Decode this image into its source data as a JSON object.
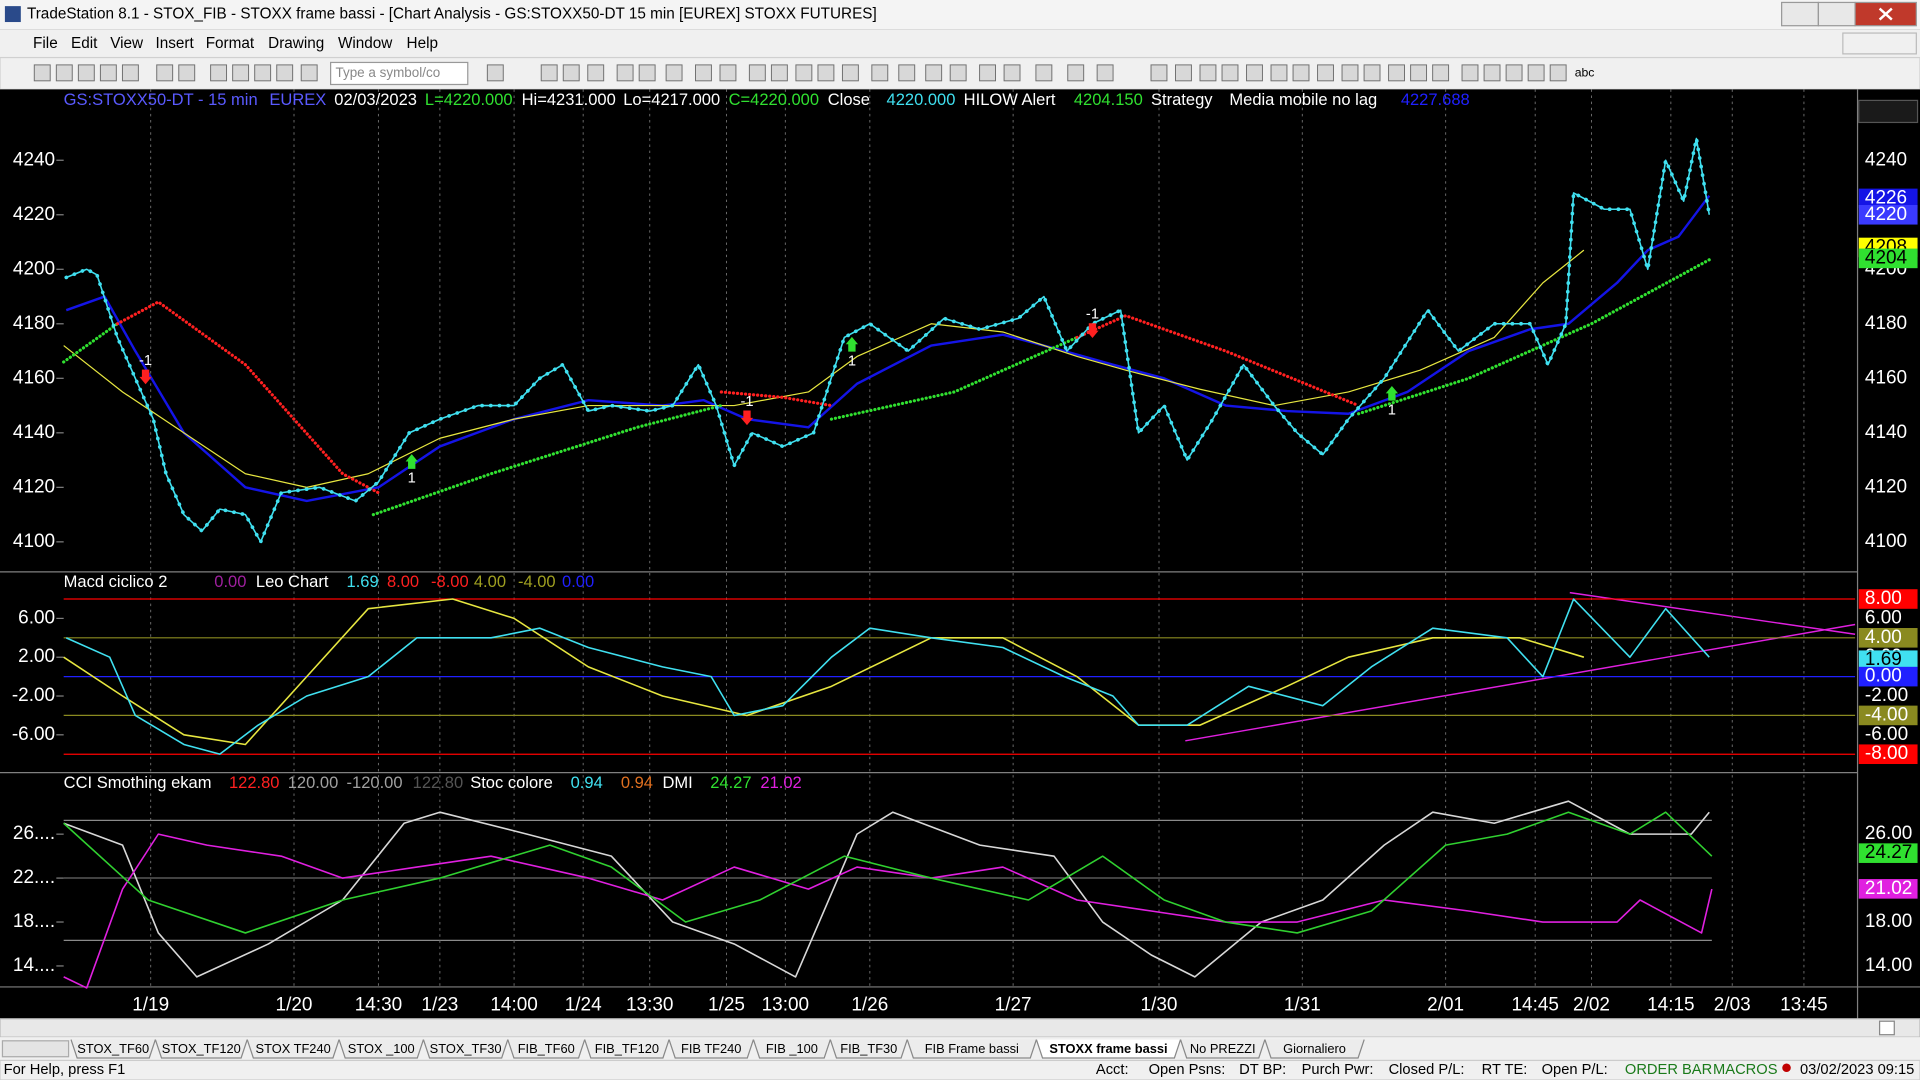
{
  "window": {
    "title": "TradeStation 8.1 - STOX_FIB - STOXX frame bassi - [Chart Analysis - GS:STOXX50-DT  15 min  [EUREX] STOXX FUTURES]"
  },
  "menu": [
    "File",
    "Edit",
    "View",
    "Insert",
    "Format",
    "Drawing",
    "Window",
    "Help"
  ],
  "toolbar": {
    "symbol_placeholder": "Type a symbol/co",
    "text_tool": "abc"
  },
  "chart_data": [
    {
      "type": "line",
      "header": [
        "GS:STOXX50-DT - 15 min",
        "EUREX",
        "02/03/2023",
        "L=4220.000",
        "Hi=4231.000",
        "Lo=4217.000",
        "C=4220.000",
        "Close",
        "4220.000",
        "HILOW Alert",
        "4204.150",
        "Strategy",
        "Media mobile no lag",
        "4227.688"
      ],
      "xlim": [
        0,
        700
      ],
      "xticks": [
        {
          "value": 34,
          "label": "1/19"
        },
        {
          "value": 90,
          "label": "1/20"
        },
        {
          "value": 123,
          "label": "14:30"
        },
        {
          "value": 147,
          "label": "1/23"
        },
        {
          "value": 176,
          "label": "14:00"
        },
        {
          "value": 203,
          "label": "1/24"
        },
        {
          "value": 229,
          "label": "13:30"
        },
        {
          "value": 259,
          "label": "1/25"
        },
        {
          "value": 282,
          "label": "13:00"
        },
        {
          "value": 315,
          "label": "1/26"
        },
        {
          "value": 371,
          "label": "1/27"
        },
        {
          "value": 428,
          "label": "1/30"
        },
        {
          "value": 484,
          "label": "1/31"
        },
        {
          "value": 540,
          "label": "2/01"
        },
        {
          "value": 575,
          "label": "14:45"
        },
        {
          "value": 597,
          "label": "2/02"
        },
        {
          "value": 628,
          "label": "14:15"
        },
        {
          "value": 652,
          "label": "2/03"
        },
        {
          "value": 680,
          "label": "13:45"
        }
      ],
      "ylim": [
        4089,
        4266
      ],
      "yticks": [
        4100,
        4120,
        4140,
        4160,
        4180,
        4200,
        4220,
        4240
      ],
      "series": [
        {
          "color": "#1414e6",
          "style": "line",
          "x": [
            1,
            16,
            28,
            47,
            71,
            95,
            123,
            147,
            176,
            205,
            234,
            250,
            267,
            291,
            310,
            339,
            367,
            391,
            410,
            430,
            454,
            478,
            502,
            525,
            549,
            573,
            588,
            607,
            619,
            631,
            643
          ],
          "values": [
            4185,
            4190,
            4170,
            4140,
            4120,
            4115,
            4120,
            4135,
            4145,
            4152,
            4150,
            4152,
            4145,
            4142,
            4158,
            4172,
            4176,
            4170,
            4165,
            4160,
            4150,
            4148,
            4147,
            4155,
            4170,
            4178,
            4180,
            4195,
            4207,
            4212,
            4227
          ]
        },
        {
          "color": "#e6e640",
          "style": "thin",
          "x": [
            0,
            23,
            47,
            71,
            95,
            119,
            147,
            176,
            205,
            234,
            262,
            291,
            310,
            339,
            367,
            396,
            415,
            444,
            473,
            502,
            530,
            559,
            578,
            594
          ],
          "values": [
            4172,
            4155,
            4140,
            4125,
            4120,
            4125,
            4138,
            4145,
            4150,
            4150,
            4150,
            4155,
            4168,
            4180,
            4177,
            4168,
            4163,
            4156,
            4150,
            4155,
            4163,
            4175,
            4195,
            4207
          ]
        },
        {
          "color": "#30e030",
          "style": "dots",
          "x": [
            0,
            21,
            21,
            121,
            167,
            224,
            257,
            257,
            300,
            348,
            396,
            396,
            506,
            549,
            597,
            644
          ],
          "values": [
            4166,
            4180,
            null,
            4110,
            4125,
            4142,
            4150,
            null,
            4145,
            4155,
            4175,
            null,
            4147,
            4160,
            4180,
            4204
          ]
        },
        {
          "color": "#ff2020",
          "style": "dots",
          "x": [
            21,
            37,
            71,
            109,
            123,
            123,
            257,
            281,
            300,
            300,
            396,
            415,
            454,
            506
          ],
          "values": [
            4180,
            4188,
            4165,
            4125,
            4118,
            null,
            4155,
            4153,
            4150,
            null,
            4175,
            4183,
            4170,
            4150
          ]
        },
        {
          "color": "#40e0f0",
          "style": "price",
          "x": [
            1,
            9,
            13,
            21,
            28,
            35,
            40,
            47,
            54,
            61,
            71,
            77,
            85,
            100,
            114,
            123,
            135,
            147,
            162,
            176,
            186,
            195,
            205,
            214,
            229,
            238,
            248,
            255,
            262,
            269,
            281,
            293,
            305,
            315,
            330,
            344,
            358,
            373,
            383,
            392,
            402,
            413,
            420,
            430,
            439,
            449,
            461,
            473,
            482,
            492,
            502,
            516,
            533,
            545,
            559,
            573,
            580,
            587,
            590,
            602,
            612,
            619,
            626,
            633,
            638,
            643
          ],
          "values": [
            4197,
            4200,
            4198,
            4175,
            4160,
            4145,
            4125,
            4110,
            4104,
            4112,
            4110,
            4100,
            4118,
            4120,
            4115,
            4122,
            4140,
            4145,
            4150,
            4150,
            4160,
            4165,
            4148,
            4150,
            4148,
            4150,
            4165,
            4150,
            4128,
            4140,
            4135,
            4140,
            4175,
            4180,
            4170,
            4182,
            4178,
            4182,
            4190,
            4170,
            4180,
            4185,
            4140,
            4150,
            4130,
            4145,
            4165,
            4150,
            4140,
            4132,
            4145,
            4160,
            4185,
            4170,
            4180,
            4180,
            4165,
            4180,
            4228,
            4222,
            4222,
            4200,
            4240,
            4225,
            4248,
            4220
          ]
        }
      ],
      "signals": [
        {
          "label": "-1",
          "x": 32,
          "y": 4165,
          "color": "#ff2020"
        },
        {
          "label": "1",
          "x": 136,
          "y": 4125,
          "color": "#30e030"
        },
        {
          "label": "-1",
          "x": 267,
          "y": 4150,
          "color": "#ff2020"
        },
        {
          "label": "1",
          "x": 308,
          "y": 4168,
          "color": "#30e030"
        },
        {
          "label": "-1",
          "x": 402,
          "y": 4182,
          "color": "#ff2020"
        },
        {
          "label": "1",
          "x": 519,
          "y": 4150,
          "color": "#30e030"
        }
      ],
      "markers": [
        {
          "value": 4226,
          "color": "#1414e6"
        },
        {
          "value": 4220,
          "color": "#3a3aff"
        },
        {
          "value": 4208,
          "color": "#ffff00"
        },
        {
          "value": 4204,
          "color": "#30e030"
        }
      ]
    },
    {
      "type": "line",
      "header": [
        "Macd ciclico 2",
        "0.00",
        "Leo Chart",
        "1.69",
        "8.00",
        "-8.00",
        "4.00",
        "-4.00",
        "0.00"
      ],
      "ylim": [
        -9.9,
        10.8
      ],
      "yticks": [
        {
          "value": 6,
          "label": "6.00"
        },
        {
          "value": 2,
          "label": "2.00"
        },
        {
          "value": -2,
          "label": "-2.00"
        },
        {
          "value": -6,
          "label": "-6.00"
        }
      ],
      "series": [
        {
          "color": "#e6e640",
          "style": "line",
          "x": [
            0,
            23,
            47,
            71,
            95,
            119,
            152,
            176,
            205,
            234,
            267,
            300,
            339,
            367,
            396,
            420,
            444,
            478,
            502,
            535,
            569,
            594
          ],
          "values": [
            2,
            -2,
            -6,
            -7,
            0,
            7,
            8,
            6,
            1,
            -2,
            -4,
            -1,
            4,
            4,
            0,
            -5,
            -5,
            -1,
            2,
            4,
            4,
            2
          ]
        },
        {
          "color": "#40e0f0",
          "style": "line",
          "x": [
            1,
            18,
            28,
            47,
            61,
            76,
            95,
            119,
            138,
            167,
            186,
            205,
            234,
            253,
            262,
            281,
            300,
            315,
            339,
            367,
            391,
            410,
            420,
            439,
            463,
            492,
            511,
            535,
            564,
            578,
            590,
            612,
            626,
            643
          ],
          "values": [
            4,
            2,
            -4,
            -7,
            -8,
            -5,
            -2,
            0,
            4,
            4,
            5,
            3,
            1,
            0,
            -4,
            -3,
            2,
            5,
            4,
            3,
            0,
            -2,
            -5,
            -5,
            -1,
            -3,
            1,
            5,
            4,
            0,
            8,
            2,
            7,
            2
          ]
        }
      ],
      "markers": [
        {
          "value": 8,
          "label": "8.00",
          "color": "#ff0000",
          "line": true
        },
        {
          "value": 4,
          "label": "4.00",
          "color": "#8a8a20",
          "line": true
        },
        {
          "value": 1.69,
          "label": "1.69",
          "color": "#40e0f0"
        },
        {
          "value": 0,
          "label": "0.00",
          "color": "#2020ff",
          "line": true
        },
        {
          "value": -4,
          "label": "-4.00",
          "color": "#8a8a20",
          "line": true
        },
        {
          "value": -8,
          "label": "-8.00",
          "color": "#ff0000",
          "line": true
        }
      ]
    },
    {
      "type": "line",
      "header": [
        "CCI Smothing ekam",
        "122.80",
        "120.00",
        "-120.00",
        "122.80",
        "Stoc colore",
        "0.94",
        "0.94",
        "DMI",
        "24.27",
        "21.02"
      ],
      "ylim": [
        12.2,
        31.6
      ],
      "yticks": [
        {
          "value": 26,
          "label": "26...."
        },
        {
          "value": 22,
          "label": "22...."
        },
        {
          "value": 18,
          "label": "18...."
        },
        {
          "value": 14,
          "label": "14...."
        }
      ],
      "right_ticks": [
        {
          "value": 26,
          "label": "26.00"
        },
        {
          "value": 18,
          "label": "18.00"
        },
        {
          "value": 14,
          "label": "14.00"
        }
      ],
      "series": [
        {
          "color": "#d8d8d8",
          "style": "line",
          "x": [
            0,
            23,
            37,
            52,
            80,
            109,
            133,
            147,
            181,
            214,
            238,
            262,
            286,
            310,
            324,
            358,
            387,
            406,
            425,
            442,
            468,
            492,
            516,
            535,
            559,
            588,
            612,
            636,
            643
          ],
          "values": [
            27,
            25,
            17,
            13,
            16,
            20,
            27,
            28,
            26,
            24,
            18,
            16,
            13,
            26,
            28,
            25,
            24,
            18,
            15,
            13,
            18,
            20,
            25,
            28,
            27,
            29,
            26,
            26,
            28
          ]
        },
        {
          "color": "#e020e0",
          "style": "line",
          "x": [
            0,
            9,
            23,
            37,
            56,
            85,
            109,
            138,
            167,
            205,
            234,
            262,
            291,
            310,
            339,
            367,
            396,
            425,
            454,
            482,
            516,
            549,
            578,
            607,
            616,
            640,
            644
          ],
          "values": [
            13,
            12,
            21,
            26,
            25,
            24,
            22,
            23,
            24,
            22,
            20,
            23,
            21,
            23,
            22,
            23,
            20,
            19,
            18,
            18,
            20,
            19,
            18,
            18,
            20,
            17,
            21
          ]
        },
        {
          "color": "#30d030",
          "style": "line",
          "x": [
            0,
            33,
            71,
            109,
            147,
            190,
            214,
            243,
            272,
            305,
            339,
            377,
            406,
            430,
            454,
            482,
            511,
            540,
            564,
            588,
            612,
            626,
            644
          ],
          "values": [
            27,
            20,
            17,
            20,
            22,
            25,
            23,
            18,
            20,
            24,
            22,
            20,
            24,
            20,
            18,
            17,
            19,
            25,
            26,
            28,
            26,
            28,
            24
          ]
        }
      ],
      "markers": [
        {
          "value": 24.27,
          "label": "24.27",
          "color": "#30e030"
        },
        {
          "value": 21.02,
          "label": "21.02",
          "color": "#e020e0"
        }
      ]
    }
  ],
  "tabs": [
    "STOX_TF60",
    "STOX_TF120",
    "STOX TF240",
    "STOX _100",
    "STOX_TF30",
    "FIB_TF60",
    "FIB_TF120",
    "FIB TF240",
    "FIB _100",
    "FIB_TF30",
    "FIB Frame bassi",
    "STOXX frame bassi",
    "No PREZZI",
    "Giornaliero"
  ],
  "active_tab": 11,
  "status": {
    "help": "For Help, press F1",
    "acct": "Acct:",
    "open_psns": "Open Psns:",
    "dt_bp": "DT BP:",
    "purch_pwr": "Purch Pwr:",
    "closed_pl": "Closed P/L:",
    "rt_te": "RT TE:",
    "open_pl": "Open P/L:",
    "order_bar": "ORDER BAR",
    "macros": "MACROS",
    "datetime": "03/02/2023 09:15"
  }
}
